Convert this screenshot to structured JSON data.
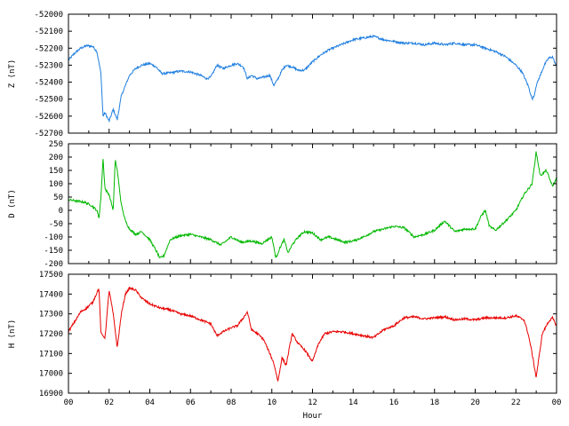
{
  "chart_data": [
    {
      "type": "line",
      "ylabel": "Z (nT)",
      "color": "#1f7fe0",
      "ylim": [
        -52700,
        -52000
      ],
      "yticks": [
        -52000,
        -52100,
        -52200,
        -52300,
        -52400,
        -52500,
        -52600,
        -52700
      ],
      "xlim": [
        0,
        24
      ],
      "x": [
        0,
        0.3,
        0.6,
        0.9,
        1.2,
        1.4,
        1.6,
        1.7,
        1.8,
        2.0,
        2.2,
        2.4,
        2.6,
        2.8,
        3.0,
        3.3,
        3.6,
        4.0,
        4.3,
        4.6,
        5.0,
        5.5,
        6.0,
        6.5,
        6.8,
        7.0,
        7.3,
        7.6,
        8.0,
        8.3,
        8.6,
        8.8,
        9.0,
        9.3,
        9.6,
        9.9,
        10.1,
        10.3,
        10.5,
        10.7,
        11.0,
        11.3,
        11.6,
        12.0,
        12.4,
        12.8,
        13.2,
        13.6,
        14.0,
        14.5,
        15.0,
        15.5,
        16.0,
        16.5,
        17.0,
        17.5,
        18.0,
        18.5,
        19.0,
        19.5,
        20.0,
        20.5,
        21.0,
        21.5,
        22.0,
        22.3,
        22.6,
        22.8,
        22.9,
        23.0,
        23.2,
        23.4,
        23.6,
        23.8,
        24.0
      ],
      "y": [
        -52270,
        -52230,
        -52200,
        -52185,
        -52190,
        -52220,
        -52350,
        -52600,
        -52580,
        -52630,
        -52560,
        -52620,
        -52480,
        -52420,
        -52360,
        -52320,
        -52300,
        -52290,
        -52310,
        -52350,
        -52345,
        -52335,
        -52340,
        -52360,
        -52380,
        -52370,
        -52300,
        -52320,
        -52300,
        -52290,
        -52310,
        -52380,
        -52360,
        -52380,
        -52370,
        -52360,
        -52420,
        -52380,
        -52330,
        -52300,
        -52310,
        -52330,
        -52330,
        -52280,
        -52240,
        -52210,
        -52190,
        -52170,
        -52150,
        -52140,
        -52130,
        -52150,
        -52160,
        -52170,
        -52170,
        -52180,
        -52170,
        -52180,
        -52170,
        -52180,
        -52180,
        -52200,
        -52220,
        -52250,
        -52300,
        -52340,
        -52420,
        -52500,
        -52480,
        -52420,
        -52360,
        -52300,
        -52260,
        -52250,
        -52310
      ]
    },
    {
      "type": "line",
      "ylabel": "D (nT)",
      "color": "#00b800",
      "ylim": [
        -200,
        250
      ],
      "yticks": [
        250,
        200,
        150,
        100,
        50,
        0,
        -50,
        -100,
        -150,
        -200
      ],
      "xlim": [
        0,
        24
      ],
      "x": [
        0,
        0.4,
        0.8,
        1.1,
        1.4,
        1.5,
        1.6,
        1.7,
        1.8,
        2.0,
        2.2,
        2.3,
        2.4,
        2.6,
        2.8,
        3.0,
        3.3,
        3.6,
        4.0,
        4.3,
        4.5,
        4.7,
        5.0,
        5.5,
        6.0,
        6.5,
        7.0,
        7.5,
        8.0,
        8.5,
        9.0,
        9.5,
        10.0,
        10.2,
        10.4,
        10.6,
        10.8,
        11.0,
        11.3,
        11.6,
        12.0,
        12.4,
        12.8,
        13.2,
        13.6,
        14.0,
        14.5,
        15.0,
        15.5,
        16.0,
        16.5,
        17.0,
        17.5,
        18.0,
        18.5,
        19.0,
        19.5,
        20.0,
        20.3,
        20.5,
        20.7,
        21.0,
        21.5,
        22.0,
        22.4,
        22.8,
        23.0,
        23.2,
        23.5,
        23.8,
        24.0
      ],
      "y": [
        40,
        35,
        30,
        20,
        0,
        -30,
        50,
        195,
        80,
        60,
        0,
        190,
        150,
        20,
        -40,
        -70,
        -90,
        -80,
        -110,
        -150,
        -180,
        -170,
        -110,
        -95,
        -90,
        -100,
        -110,
        -130,
        -100,
        -120,
        -115,
        -125,
        -100,
        -180,
        -140,
        -110,
        -160,
        -130,
        -100,
        -80,
        -85,
        -110,
        -100,
        -110,
        -120,
        -115,
        -100,
        -80,
        -70,
        -60,
        -65,
        -100,
        -90,
        -75,
        -40,
        -80,
        -70,
        -70,
        -20,
        0,
        -60,
        -75,
        -40,
        0,
        60,
        100,
        220,
        130,
        150,
        90,
        120
      ]
    },
    {
      "type": "line",
      "ylabel": "H (nT)",
      "xlabel": "Hour",
      "color": "#e80000",
      "ylim": [
        16900,
        17500
      ],
      "yticks": [
        17500,
        17400,
        17300,
        17200,
        17100,
        17000,
        16900
      ],
      "xlim": [
        0,
        24
      ],
      "xticks": [
        "00",
        "02",
        "04",
        "06",
        "08",
        "10",
        "12",
        "14",
        "16",
        "18",
        "20",
        "22",
        "00"
      ],
      "x": [
        0,
        0.3,
        0.6,
        0.9,
        1.2,
        1.5,
        1.6,
        1.8,
        2.0,
        2.2,
        2.4,
        2.6,
        2.8,
        3.0,
        3.3,
        3.6,
        4.0,
        4.5,
        5.0,
        5.5,
        6.0,
        6.5,
        7.0,
        7.3,
        7.6,
        8.0,
        8.3,
        8.6,
        8.8,
        9.0,
        9.3,
        9.6,
        9.9,
        10.1,
        10.3,
        10.5,
        10.7,
        11.0,
        11.3,
        11.6,
        12.0,
        12.3,
        12.6,
        13.0,
        13.5,
        14.0,
        14.5,
        15.0,
        15.5,
        16.0,
        16.5,
        17.0,
        17.5,
        18.0,
        18.5,
        19.0,
        19.5,
        20.0,
        20.5,
        21.0,
        21.5,
        22.0,
        22.4,
        22.6,
        22.8,
        23.0,
        23.3,
        23.6,
        23.8,
        24.0
      ],
      "y": [
        17210,
        17260,
        17310,
        17330,
        17360,
        17430,
        17200,
        17180,
        17420,
        17300,
        17130,
        17300,
        17400,
        17430,
        17420,
        17380,
        17350,
        17330,
        17320,
        17300,
        17290,
        17270,
        17250,
        17190,
        17210,
        17230,
        17240,
        17280,
        17310,
        17220,
        17200,
        17170,
        17100,
        17050,
        16960,
        17080,
        17040,
        17200,
        17150,
        17120,
        17060,
        17150,
        17200,
        17210,
        17210,
        17200,
        17190,
        17180,
        17220,
        17240,
        17280,
        17285,
        17275,
        17280,
        17285,
        17270,
        17275,
        17270,
        17280,
        17280,
        17280,
        17290,
        17270,
        17200,
        17100,
        16980,
        17200,
        17260,
        17280,
        17240
      ]
    }
  ]
}
